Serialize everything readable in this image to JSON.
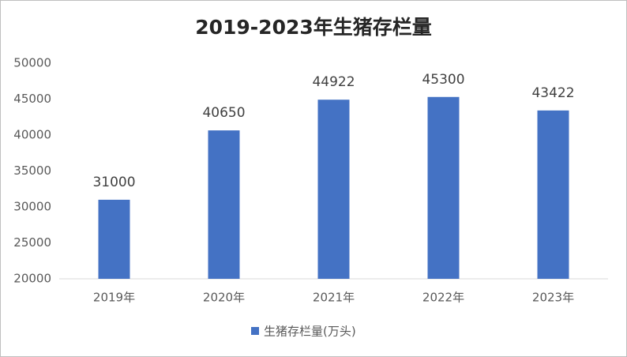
{
  "chart_data": {
    "type": "bar",
    "title": "2019-2023年生猪存栏量",
    "categories": [
      "2019年",
      "2020年",
      "2021年",
      "2022年",
      "2023年"
    ],
    "series": [
      {
        "name": "生猪存栏量(万头)",
        "color": "#4472c4",
        "values": [
          31000,
          40650,
          44922,
          45300,
          43422
        ]
      }
    ],
    "ylim": [
      20000,
      50000
    ],
    "yticks": [
      20000,
      25000,
      30000,
      35000,
      40000,
      45000,
      50000
    ],
    "grid": false,
    "legend": "bottom"
  }
}
